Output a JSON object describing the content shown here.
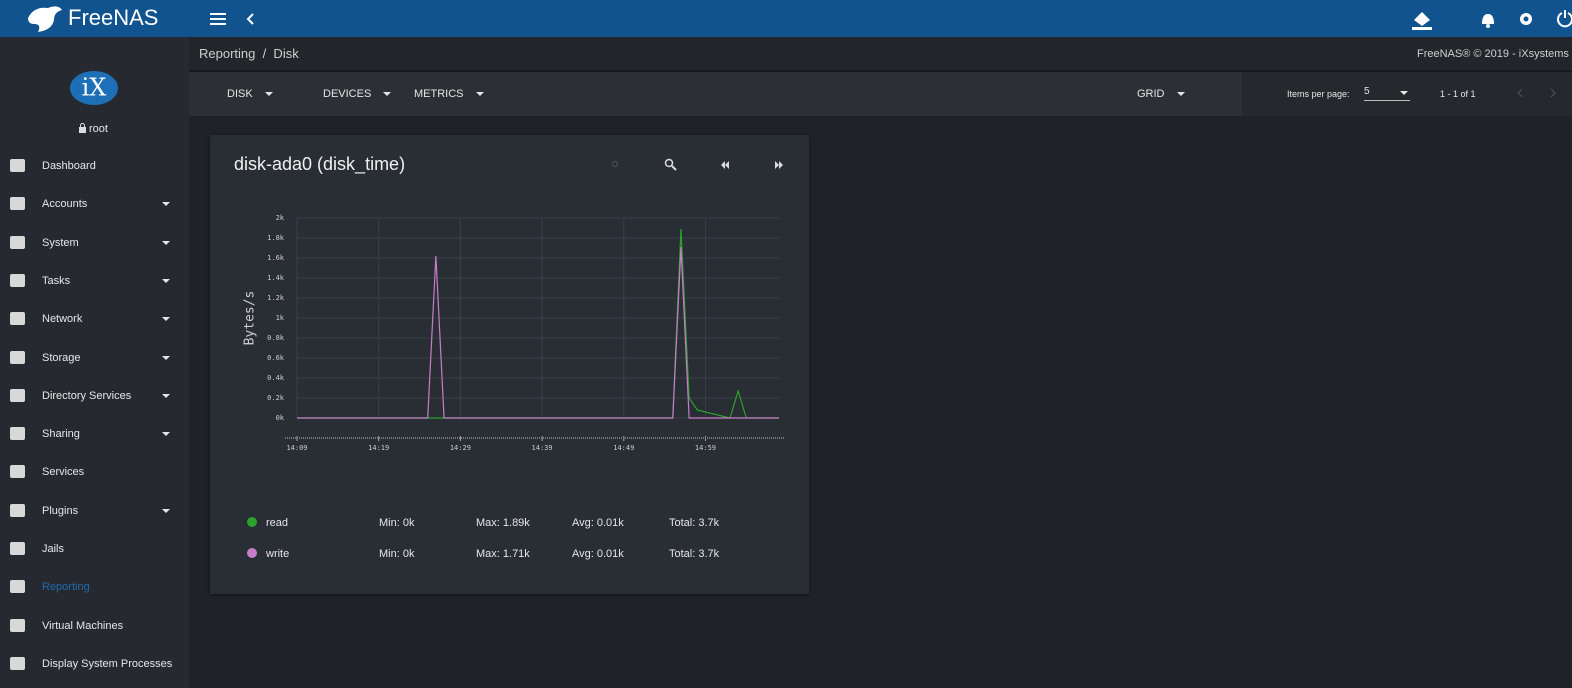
{
  "topbar": {
    "brand": "FreeNAS"
  },
  "sidebar": {
    "logo": "iX",
    "user": "root",
    "items": [
      {
        "label": "Dashboard",
        "expandable": false
      },
      {
        "label": "Accounts",
        "expandable": true
      },
      {
        "label": "System",
        "expandable": true
      },
      {
        "label": "Tasks",
        "expandable": true
      },
      {
        "label": "Network",
        "expandable": true
      },
      {
        "label": "Storage",
        "expandable": true
      },
      {
        "label": "Directory Services",
        "expandable": true
      },
      {
        "label": "Sharing",
        "expandable": true
      },
      {
        "label": "Services",
        "expandable": false
      },
      {
        "label": "Plugins",
        "expandable": true
      },
      {
        "label": "Jails",
        "expandable": false
      },
      {
        "label": "Reporting",
        "expandable": false,
        "active": true
      },
      {
        "label": "Virtual Machines",
        "expandable": false
      },
      {
        "label": "Display System Processes",
        "expandable": false
      }
    ]
  },
  "breadcrumb": "Reporting  /  Disk",
  "copyright": "FreeNAS® © 2019 - iXsystems",
  "toolbar": {
    "filters": [
      "DISK",
      "DEVICES",
      "METRICS"
    ],
    "view": "GRID",
    "items_per_page_label": "Items per page:",
    "items_per_page": 5,
    "range": "1 - 1 of 1"
  },
  "legend_stats": [
    [
      "Min: 0k",
      "Max: 1.89k",
      "Avg: 0.01k",
      "Total: 3.7k"
    ],
    [
      "Min: 0k",
      "Max: 1.71k",
      "Avg: 0.01k",
      "Total: 3.7k"
    ]
  ],
  "chart_data": {
    "type": "line",
    "title": "disk-ada0 (disk_time)",
    "ylabel": "Bytes/s",
    "x": [
      "14:09",
      "14:25",
      "14:26",
      "14:27",
      "14:55",
      "14:56",
      "14:57",
      "14:58",
      "15:02",
      "15:03",
      "15:04",
      "15:08"
    ],
    "series": [
      {
        "name": "read",
        "color": "#2ca02c",
        "values": [
          0,
          0,
          0,
          0,
          0,
          1890,
          200,
          80,
          0,
          270,
          0,
          0
        ]
      },
      {
        "name": "write",
        "color": "#c77dc7",
        "values": [
          0,
          0,
          1620,
          0,
          0,
          1710,
          0,
          0,
          0,
          0,
          0,
          0
        ]
      }
    ],
    "xlim": [
      "14:09",
      "15:08"
    ],
    "xticks": [
      "14:09",
      "14:19",
      "14:29",
      "14:39",
      "14:49",
      "14:59"
    ],
    "ylim": [
      0,
      2000
    ],
    "yticks": [
      {
        "value": 0,
        "label": "0k"
      },
      {
        "value": 200,
        "label": "0.2k"
      },
      {
        "value": 400,
        "label": "0.4k"
      },
      {
        "value": 600,
        "label": "0.6k"
      },
      {
        "value": 800,
        "label": "0.8k"
      },
      {
        "value": 1000,
        "label": "1k"
      },
      {
        "value": 1200,
        "label": "1.2k"
      },
      {
        "value": 1400,
        "label": "1.4k"
      },
      {
        "value": 1600,
        "label": "1.6k"
      },
      {
        "value": 1800,
        "label": "1.8k"
      },
      {
        "value": 2000,
        "label": "2k"
      }
    ],
    "grid": true
  }
}
